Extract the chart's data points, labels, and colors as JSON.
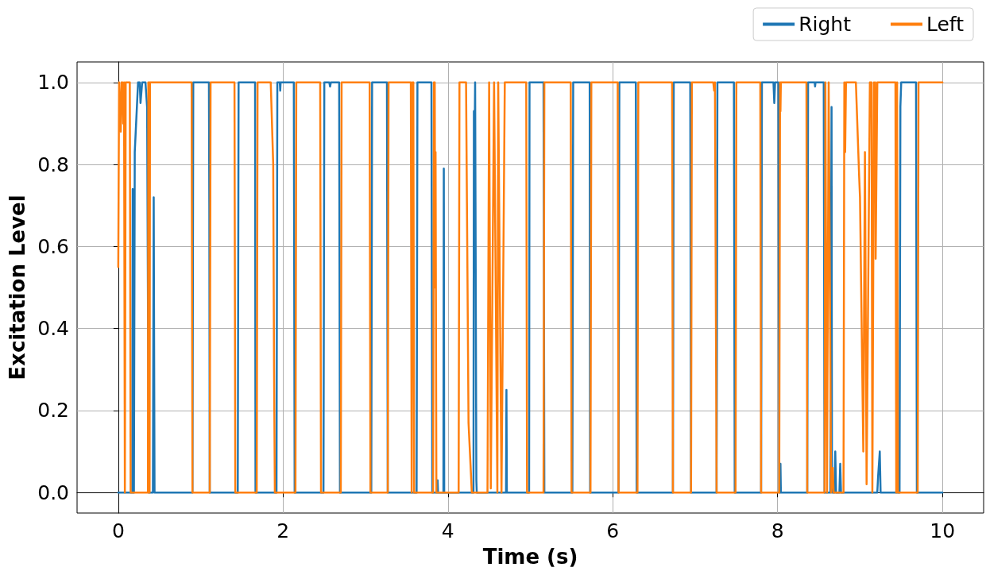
{
  "chart_data": {
    "type": "line",
    "xlabel": "Time (s)",
    "ylabel": "Excitation Level",
    "xlim": [
      -0.5,
      10.5
    ],
    "xticks": [
      0,
      2,
      4,
      6,
      8,
      10
    ],
    "ylim": [
      -0.05,
      1.05
    ],
    "yticks": [
      {
        "value": 0,
        "label": "0.0"
      },
      {
        "value": 0.2,
        "label": "0.2"
      },
      {
        "value": 0.4,
        "label": "0.4"
      },
      {
        "value": 0.6,
        "label": "0.6"
      },
      {
        "value": 0.8,
        "label": "0.8"
      },
      {
        "value": 1,
        "label": "1.0"
      }
    ],
    "grid": true,
    "legend": "top right",
    "marker": "none",
    "line_style": "solid",
    "series": [
      {
        "name": "Right",
        "color": "#1f77b4",
        "x": [
          0,
          0.17,
          0.175,
          0.18,
          0.19,
          0.2,
          0.24,
          0.26,
          0.27,
          0.29,
          0.33,
          0.35,
          0.37,
          0.42,
          0.43,
          0.44,
          0.9,
          0.91,
          1.1,
          1.105,
          1.11,
          1.45,
          1.46,
          1.66,
          1.665,
          1.92,
          1.93,
          1.96,
          1.965,
          1.97,
          2.13,
          2.14,
          2.49,
          2.5,
          2.56,
          2.57,
          2.58,
          2.68,
          2.69,
          3.07,
          3.08,
          3.26,
          3.27,
          3.62,
          3.63,
          3.8,
          3.81,
          3.87,
          3.875,
          3.88,
          3.945,
          3.95,
          3.955,
          4.31,
          4.315,
          4.32,
          4.33,
          4.345,
          4.35,
          4.705,
          4.71,
          4.715,
          4.985,
          4.99,
          5.16,
          5.17,
          5.51,
          5.52,
          5.72,
          5.725,
          6.07,
          6.08,
          6.28,
          6.29,
          6.73,
          6.74,
          6.94,
          6.95,
          7.26,
          7.27,
          7.47,
          7.48,
          7.8,
          7.81,
          7.95,
          7.96,
          7.97,
          8.01,
          8.02,
          8.03,
          8.035,
          8.04,
          8.36,
          8.37,
          8.45,
          8.455,
          8.46,
          8.56,
          8.57,
          8.64,
          8.655,
          8.66,
          8.69,
          8.7,
          8.71,
          8.75,
          8.76,
          8.77,
          9.21,
          9.22,
          9.24,
          9.25,
          9.48,
          9.49,
          9.5,
          9.68,
          9.69,
          10
        ],
        "values": [
          0,
          0,
          0.74,
          0,
          0,
          0.83,
          1,
          1,
          0.95,
          1,
          1,
          0.94,
          0,
          0,
          0.72,
          0,
          0,
          1,
          1,
          0.69,
          0,
          0,
          1,
          1,
          0,
          0,
          1,
          1,
          0.98,
          1,
          1,
          0,
          0,
          1,
          1,
          0.99,
          1,
          1,
          0,
          0,
          1,
          1,
          0,
          0,
          1,
          1,
          0,
          0,
          0.03,
          0,
          0,
          0.79,
          0,
          0,
          0.93,
          0.76,
          1,
          0.03,
          0,
          0,
          0.25,
          0,
          0,
          1,
          1,
          0,
          0,
          1,
          1,
          0,
          0,
          1,
          1,
          0,
          0,
          1,
          1,
          0,
          0,
          1,
          1,
          0,
          0,
          1,
          1,
          0.95,
          1,
          1,
          0,
          0,
          0.07,
          0,
          0,
          1,
          1,
          0.99,
          1,
          1,
          0,
          0,
          0.94,
          0,
          0,
          0.1,
          0,
          0,
          0.07,
          0,
          0,
          0.04,
          0.1,
          0,
          0,
          0.94,
          1,
          1,
          0,
          0
        ]
      },
      {
        "name": "Left",
        "color": "#ff7f0e",
        "x": [
          0,
          0.01,
          0.03,
          0.04,
          0.05,
          0.06,
          0.07,
          0.08,
          0.09,
          0.14,
          0.15,
          0.36,
          0.365,
          0.37,
          0.375,
          0.38,
          0.385,
          0.89,
          0.9,
          1.11,
          1.12,
          1.41,
          1.42,
          1.68,
          1.69,
          1.85,
          1.88,
          1.89,
          1.9,
          2.15,
          2.16,
          2.45,
          2.46,
          2.7,
          2.71,
          3.05,
          3.06,
          3.27,
          3.28,
          3.55,
          3.56,
          3.57,
          3.58,
          3.59,
          3.82,
          3.83,
          3.84,
          3.845,
          3.85,
          3.86,
          4.13,
          4.14,
          4.22,
          4.25,
          4.29,
          4.48,
          4.5,
          4.52,
          4.56,
          4.6,
          4.61,
          4.65,
          4.69,
          4.95,
          4.96,
          5.16,
          5.17,
          5.49,
          5.5,
          5.73,
          5.74,
          6.06,
          6.07,
          6.3,
          6.31,
          6.72,
          6.73,
          6.95,
          6.96,
          7.22,
          7.23,
          7.24,
          7.26,
          7.49,
          7.5,
          7.79,
          7.8,
          8.02,
          8.03,
          8.035,
          8.04,
          8.35,
          8.36,
          8.57,
          8.58,
          8.6,
          8.62,
          8.65,
          8.67,
          8.68,
          8.8,
          8.81,
          8.82,
          8.83,
          8.95,
          8.99,
          9.0,
          9.04,
          9.06,
          9.08,
          9.12,
          9.14,
          9.15,
          9.17,
          9.18,
          9.185,
          9.19,
          9.21,
          9.43,
          9.44,
          9.45,
          9.46,
          9.7,
          9.71,
          10
        ],
        "values": [
          0.55,
          1,
          0.88,
          1,
          1,
          0.9,
          1,
          0,
          1,
          1,
          0,
          0,
          1,
          0,
          1,
          0,
          1,
          1,
          0,
          0,
          1,
          1,
          0,
          0,
          1,
          1,
          0.8,
          0.31,
          0,
          0,
          1,
          1,
          0,
          0,
          1,
          1,
          0,
          0,
          1,
          1,
          0,
          1,
          1,
          0,
          0,
          1,
          1,
          0.5,
          0.83,
          0,
          0,
          1,
          1,
          0.17,
          0,
          0,
          1,
          0.01,
          1,
          0,
          1,
          0,
          1,
          1,
          0,
          0,
          1,
          1,
          0,
          0,
          1,
          1,
          0,
          0,
          1,
          1,
          0,
          0,
          1,
          1,
          0.98,
          1,
          0,
          0,
          1,
          1,
          0,
          0,
          1,
          0.93,
          1,
          1,
          0,
          0,
          1,
          0,
          1,
          0,
          0.06,
          0,
          0,
          1,
          0.83,
          1,
          1,
          0.77,
          0.72,
          0.1,
          0.83,
          0.02,
          1,
          1,
          0,
          1,
          0.9,
          1,
          0.57,
          1,
          1,
          0,
          1,
          0,
          0,
          1,
          1
        ]
      }
    ]
  }
}
